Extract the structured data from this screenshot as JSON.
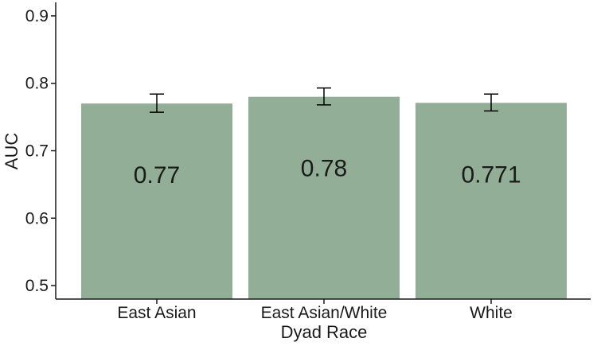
{
  "chart_data": {
    "type": "bar",
    "categories": [
      "East Asian",
      "East Asian/White",
      "White"
    ],
    "values": [
      0.77,
      0.78,
      0.771
    ],
    "value_labels": [
      "0.77",
      "0.78",
      "0.771"
    ],
    "error_bars": [
      {
        "low": 0.757,
        "high": 0.784
      },
      {
        "low": 0.768,
        "high": 0.793
      },
      {
        "low": 0.759,
        "high": 0.784
      }
    ],
    "xlabel": "Dyad Race",
    "ylabel": "AUC",
    "ylim": [
      0.48,
      0.92
    ],
    "yticks": [
      0.5,
      0.6,
      0.7,
      0.8,
      0.9
    ],
    "ytick_labels": [
      "0.5",
      "0.6",
      "0.7",
      "0.8",
      "0.9"
    ],
    "grid": false,
    "colors": {
      "bar": "#92ae96",
      "axis": "#1a1a1a",
      "error_bar": "#000000"
    }
  }
}
